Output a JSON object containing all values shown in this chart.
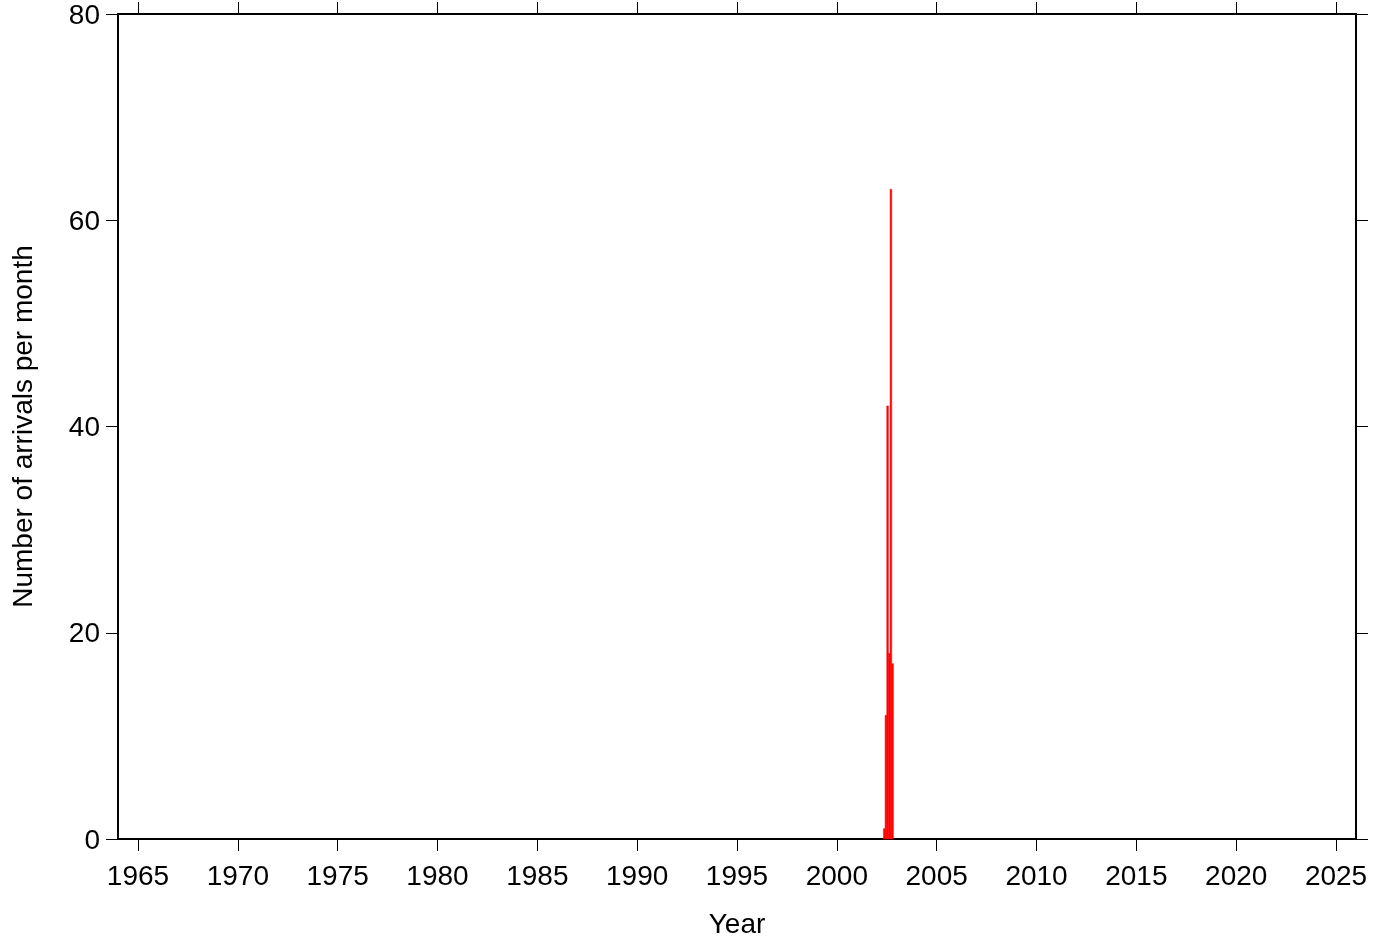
{
  "chart_data": {
    "type": "histogram",
    "xlabel": "Year",
    "ylabel": "Number of arrivals per month",
    "bins": [
      2002.333,
      2002.417,
      2002.5,
      2002.583,
      2002.667,
      2002.75,
      2002.833
    ],
    "values": [
      1,
      12,
      42,
      18,
      63,
      17
    ],
    "color": "#ff0000",
    "xlim": [
      1964,
      2026
    ],
    "xticks": [
      1965,
      1970,
      1975,
      1980,
      1985,
      1990,
      1995,
      2000,
      2005,
      2010,
      2015,
      2020,
      2025
    ],
    "ylim": [
      0,
      80
    ],
    "yticks": [
      0,
      20,
      40,
      60,
      80
    ],
    "grid": false
  }
}
